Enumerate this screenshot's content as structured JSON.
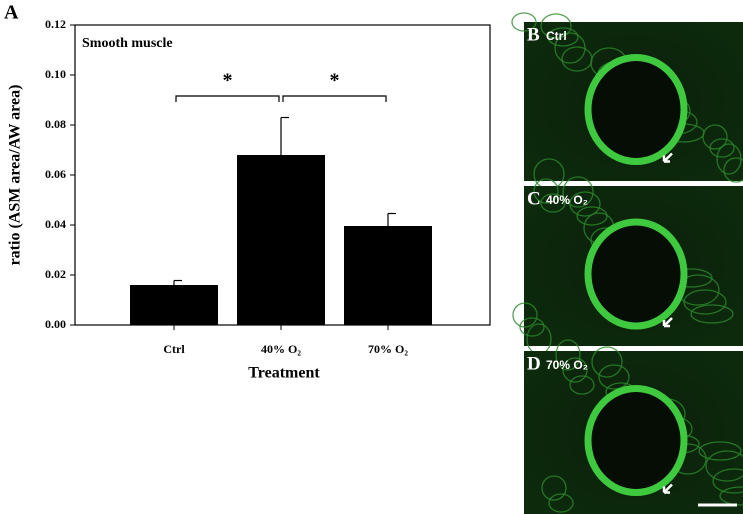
{
  "chart_data": {
    "type": "bar",
    "panel": "A",
    "subtitle": "Smooth muscle",
    "ylabel": "ratio (ASM area/AW area)",
    "xlabel": "Treatment",
    "categories": [
      "Ctrl",
      "40% O₂",
      "70% O₂"
    ],
    "values": [
      0.016,
      0.068,
      0.0396
    ],
    "errors": [
      0.0018,
      0.015,
      0.005
    ],
    "color": "#000000",
    "ylim": [
      0,
      0.12
    ],
    "yticks": [
      {
        "value": 0,
        "label": "0.00"
      },
      {
        "value": 0.02,
        "label": "0.02"
      },
      {
        "value": 0.04,
        "label": "0.04"
      },
      {
        "value": 0.06,
        "label": "0.06"
      },
      {
        "value": 0.08,
        "label": "0.08"
      },
      {
        "value": 0.1,
        "label": "0.10"
      },
      {
        "value": 0.12,
        "label": "0.12"
      }
    ],
    "annotations": [
      {
        "text": "*",
        "between": [
          "Ctrl",
          "40% O₂"
        ]
      },
      {
        "text": "*",
        "between": [
          "40% O₂",
          "70% O₂"
        ]
      }
    ]
  },
  "images": [
    {
      "label": "B",
      "caption": "Ctrl"
    },
    {
      "label": "C",
      "caption": "40% O₂"
    },
    {
      "label": "D",
      "caption": "70% O₂"
    }
  ]
}
